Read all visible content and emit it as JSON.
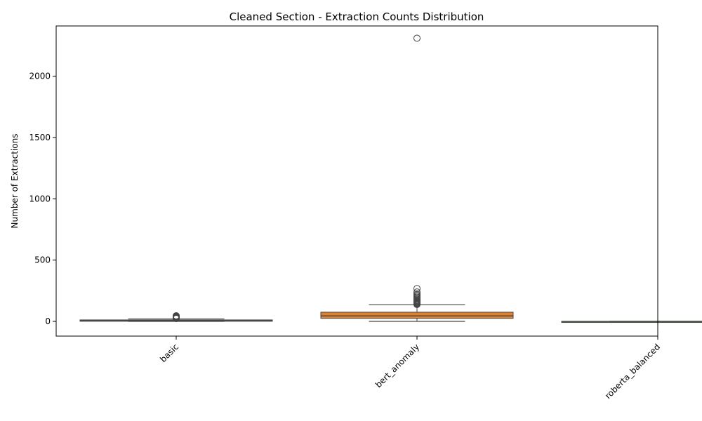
{
  "chart_data": {
    "type": "box",
    "title": "Cleaned Section - Extraction Counts Distribution",
    "xlabel": "",
    "ylabel": "Number of Extractions",
    "ylim": [
      -120,
      2410
    ],
    "yticks": [
      0,
      500,
      1000,
      1500,
      2000
    ],
    "categories": [
      "basic",
      "bert_anomaly",
      "roberta_balanced"
    ],
    "grid": false,
    "tick_rotation_deg": 45,
    "boxes": [
      {
        "category": "basic",
        "color": "#3a74a8",
        "min": 0,
        "q1": 1,
        "median": 5,
        "q3": 12,
        "max": 20,
        "outliers": [
          23,
          25,
          27,
          29,
          31,
          34,
          36,
          38,
          40,
          42,
          44,
          46
        ]
      },
      {
        "category": "bert_anomaly",
        "color": "#e1812c",
        "min": 0,
        "q1": 25,
        "median": 45,
        "q3": 75,
        "max": 135,
        "outliers": [
          138,
          142,
          146,
          150,
          155,
          160,
          165,
          170,
          175,
          182,
          190,
          198,
          206,
          215,
          225,
          240,
          268,
          2310
        ]
      },
      {
        "category": "roberta_balanced",
        "color": "#3a923a",
        "min": 0,
        "q1": 0,
        "median": 0,
        "q3": 0,
        "max": 0,
        "outliers": []
      }
    ]
  }
}
